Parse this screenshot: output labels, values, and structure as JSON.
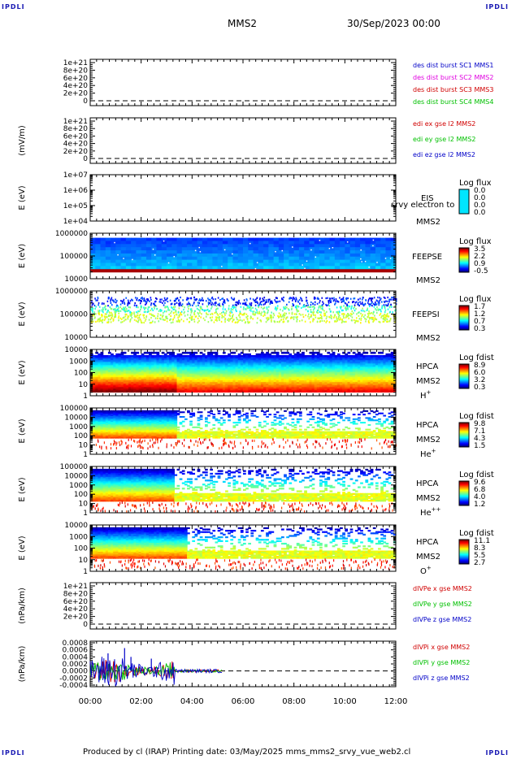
{
  "corner_labels": {
    "tl": "IPDLI",
    "tr": "IPDLI",
    "bl": "IPDLI",
    "br": "IPDLI"
  },
  "header": {
    "mission": "MMS2",
    "date": "30/Sep/2023 00:00"
  },
  "footer": {
    "text": "Produced by cl (IRAP)   Printing date: 03/May/2025   mms_mms2_srvy_vue_web2.cl"
  },
  "x_axis": {
    "ticks": [
      "00:00",
      "02:00",
      "04:00",
      "06:00",
      "08:00",
      "10:00",
      "12:00"
    ],
    "range_hours": [
      0,
      12
    ]
  },
  "chart_data": [
    {
      "id": "p1",
      "type": "line",
      "ylabel": "",
      "yticks": [
        "1e+21",
        "8e+20",
        "6e+20",
        "4e+20",
        "2e+20",
        "0"
      ],
      "series": [
        {
          "name": "des dist burst SC1 MMS1",
          "color": "#0000c8"
        },
        {
          "name": "des dist burst SC2 MMS2",
          "color": "#e000e0"
        },
        {
          "name": "des dist burst SC3 MMS3",
          "color": "#d00000"
        },
        {
          "name": "des dist burst SC4 MMS4",
          "color": "#00c000"
        }
      ],
      "zero_line": true
    },
    {
      "id": "p2",
      "type": "line",
      "ylabel": "(mV/m)",
      "yticks": [
        "1e+21",
        "8e+20",
        "6e+20",
        "4e+20",
        "2e+20",
        "0"
      ],
      "series": [
        {
          "name": "edi ex gse l2 MMS2",
          "color": "#d00000"
        },
        {
          "name": "edi ey gse l2 MMS2",
          "color": "#00c000"
        },
        {
          "name": "edi ez gse l2 MMS2",
          "color": "#0000c8"
        }
      ],
      "zero_line": true
    },
    {
      "id": "p3",
      "type": "heatmap",
      "ylabel": "E (eV)",
      "yticks": [
        "1e+07",
        "1e+06",
        "1e+05",
        "1e+04"
      ],
      "log_scale": true,
      "instrument": [
        "EIS",
        "MMS2"
      ],
      "overlay": "srvy electron to",
      "colorbar_title": "Log flux",
      "colorbar_ticks": [
        "0.0",
        "0.0",
        "0.0",
        "0.0"
      ],
      "pattern": "none"
    },
    {
      "id": "p4",
      "type": "heatmap",
      "ylabel": "E (eV)",
      "yticks": [
        "1000000",
        "100000",
        "10000"
      ],
      "log_scale": true,
      "instrument": [
        "FEEPSE",
        "MMS2"
      ],
      "colorbar_title": "Log flux",
      "colorbar_ticks": [
        "3.5",
        "2.2",
        "0.9",
        "-0.5"
      ],
      "pattern": "feepse"
    },
    {
      "id": "p5",
      "type": "heatmap",
      "ylabel": "E (eV)",
      "yticks": [
        "1000000",
        "100000",
        "10000"
      ],
      "log_scale": true,
      "instrument": [
        "FEEPSI",
        "MMS2"
      ],
      "colorbar_title": "Log flux",
      "colorbar_ticks": [
        "1.7",
        "1.2",
        "0.7",
        "0.3"
      ],
      "pattern": "feepsi"
    },
    {
      "id": "p6",
      "type": "heatmap",
      "ylabel": "E (eV)",
      "yticks": [
        "10000",
        "1000",
        "100",
        "10",
        "1"
      ],
      "log_scale": true,
      "instrument": [
        "HPCA",
        "MMS2"
      ],
      "species": "H",
      "species_sup": "+",
      "colorbar_title": "Log fdist",
      "colorbar_ticks": [
        "8.9",
        "6.0",
        "3.2",
        "0.3"
      ],
      "pattern": "hplus"
    },
    {
      "id": "p7",
      "type": "heatmap",
      "ylabel": "E (eV)",
      "yticks": [
        "100000",
        "10000",
        "1000",
        "100",
        "10",
        "1"
      ],
      "log_scale": true,
      "instrument": [
        "HPCA",
        "MMS2"
      ],
      "species": "He",
      "species_sup": "+",
      "colorbar_title": "Log fdist",
      "colorbar_ticks": [
        "9.8",
        "7.1",
        "4.3",
        "1.5"
      ],
      "pattern": "heplus"
    },
    {
      "id": "p8",
      "type": "heatmap",
      "ylabel": "E (eV)",
      "yticks": [
        "100000",
        "10000",
        "1000",
        "100",
        "10",
        "1"
      ],
      "log_scale": true,
      "instrument": [
        "HPCA",
        "MMS2"
      ],
      "species": "He",
      "species_sup": "++",
      "colorbar_title": "Log fdist",
      "colorbar_ticks": [
        "9.6",
        "6.8",
        "4.0",
        "1.2"
      ],
      "pattern": "heplusplus"
    },
    {
      "id": "p9",
      "type": "heatmap",
      "ylabel": "E (eV)",
      "yticks": [
        "10000",
        "1000",
        "100",
        "10",
        "1"
      ],
      "log_scale": true,
      "instrument": [
        "HPCA",
        "MMS2"
      ],
      "species": "O",
      "species_sup": "+",
      "colorbar_title": "Log fdist",
      "colorbar_ticks": [
        "11.1",
        "8.3",
        "5.5",
        "2.7"
      ],
      "pattern": "oplus"
    },
    {
      "id": "p10",
      "type": "line",
      "ylabel": "(nPa/km)",
      "yticks": [
        "1e+21",
        "8e+20",
        "6e+20",
        "4e+20",
        "2e+20",
        "0"
      ],
      "series": [
        {
          "name": "dIVPe x gse MMS2",
          "color": "#d00000"
        },
        {
          "name": "dIVPe y gse MMS2",
          "color": "#00c000"
        },
        {
          "name": "dIVPe z gse MMS2",
          "color": "#0000c8"
        }
      ],
      "zero_line": true
    },
    {
      "id": "p11",
      "type": "line",
      "ylabel": "(nPa/km)",
      "yticks": [
        "0.0008",
        "0.0006",
        "0.0004",
        "0.0002",
        "0.0000",
        "-0.0002",
        "-0.0004"
      ],
      "ylim": [
        -0.0004,
        0.0008
      ],
      "series": [
        {
          "name": "dIVPi x gse MMS2",
          "color": "#d00000"
        },
        {
          "name": "dIVPi y gse MMS2",
          "color": "#00c000"
        },
        {
          "name": "dIVPi z gse MMS2",
          "color": "#0000c8"
        }
      ],
      "zero_line": true,
      "data_end_hours": 5.2
    }
  ]
}
